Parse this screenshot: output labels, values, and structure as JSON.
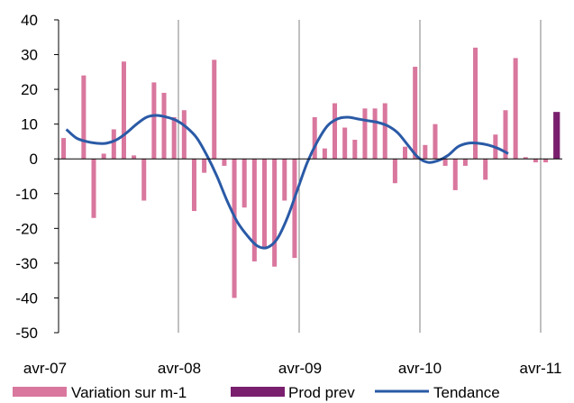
{
  "chart_data": {
    "type": "bar",
    "ylim": [
      -50,
      40
    ],
    "yticks": [
      -50,
      -40,
      -30,
      -20,
      -10,
      0,
      10,
      20,
      30,
      40
    ],
    "x_labels": [
      "avr-07",
      "avr-08",
      "avr-09",
      "avr-10",
      "avr-11"
    ],
    "grid": "vertical-yearly",
    "legend_position": "bottom",
    "colors": {
      "variation": "#d9779e",
      "prod_prev": "#7a1f6e",
      "tendance": "#2a5aa6",
      "grid": "#808080",
      "axis": "#000000"
    },
    "series": [
      {
        "name": "Variation sur m-1",
        "kind": "bar",
        "values": [
          6,
          0,
          24,
          -17,
          1.5,
          8.5,
          28,
          1,
          -12,
          22,
          19,
          12,
          14,
          -15,
          -4,
          28.5,
          -2,
          -40,
          -14,
          -29.5,
          -26,
          -31,
          -12,
          -28.5,
          0,
          12,
          3,
          16,
          9,
          5.5,
          14.5,
          14.5,
          16,
          -7,
          3.5,
          26.5,
          4,
          10,
          -2,
          -9,
          -2,
          32,
          -6,
          7,
          14,
          29,
          0.5,
          -1,
          -1
        ]
      },
      {
        "name": "Prod prev",
        "kind": "bar",
        "values": [
          13.5
        ]
      },
      {
        "name": "Tendance",
        "kind": "line",
        "values": [
          8.5,
          6,
          5,
          4.5,
          4.5,
          5.5,
          7.5,
          10,
          12,
          12.5,
          12,
          11,
          9,
          6,
          1,
          -5,
          -12,
          -18,
          -22,
          -25,
          -25.5,
          -23,
          -17,
          -9,
          -1,
          5,
          9.5,
          11.5,
          12,
          11.5,
          11,
          10.5,
          9.5,
          7.5,
          4,
          0.5,
          -1,
          -0.5,
          1,
          3.5,
          4.5,
          4.5,
          4,
          3,
          1.5
        ]
      }
    ]
  }
}
